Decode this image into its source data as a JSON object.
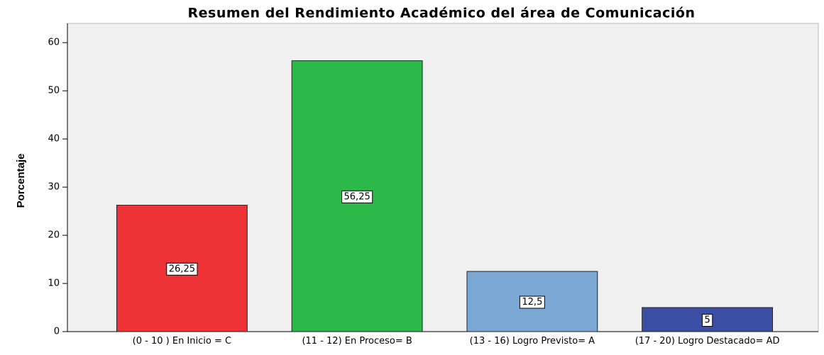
{
  "chart_data": {
    "type": "bar",
    "title": "Resumen del Rendimiento Académico del área de Comunicación",
    "y_label": "Porcentaje",
    "categories": [
      "(0 - 10 ) En Inicio = C",
      "(11 - 12) En Proceso= B",
      "(13 - 16) Logro Previsto= A",
      "(17 - 20) Logro Destacado= AD"
    ],
    "values": [
      26.25,
      56.25,
      12.5,
      5
    ],
    "value_labels": [
      "26,25",
      "56,25",
      "12,5",
      "5"
    ],
    "colors": [
      "#ee3338",
      "#2db84a",
      "#7ba7d5",
      "#3a4fa3"
    ],
    "ylim": [
      0,
      64
    ],
    "yticks": [
      0,
      10,
      20,
      30,
      40,
      50,
      60
    ],
    "grid": false
  }
}
